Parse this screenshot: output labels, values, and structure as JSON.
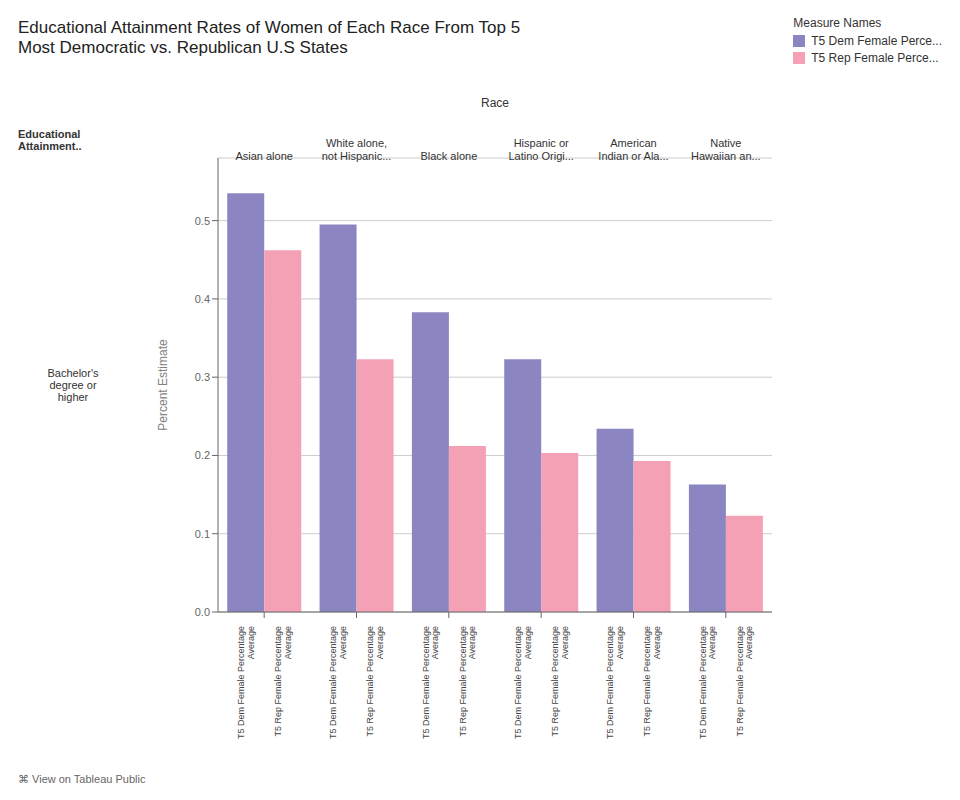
{
  "chart_data": {
    "type": "bar",
    "title": "Educational Attainment Rates of Women of Each Race From Top 5\nMost Democratic vs. Republican U.S States",
    "x_label": "Race",
    "y_label": "Percent Estimate",
    "annotations": [
      "Bachelor's\ndegree or\nhigher",
      "Educational\nAttainment..",
      "⌘ View on Tableau Public"
    ],
    "legend_title": "Measure Names",
    "categories": [
      "Asian alone",
      "White alone,\nnot Hispanic...",
      "Black alone",
      "Hispanic or\nLatino Origi...",
      "American\nIndian or Ala...",
      "Native\nHawaiian an..."
    ],
    "series": [
      {
        "name": "T5 Dem Female Perce...",
        "color": "#8B85C1",
        "tick_label": "T5 Dem Female Percentage\nAverage",
        "values": [
          0.535,
          0.495,
          0.383,
          0.323,
          0.234,
          0.163
        ]
      },
      {
        "name": "T5 Rep Female Perce...",
        "color": "#F4A0B5",
        "tick_label": "T5 Rep Female Percentage\nAverage",
        "values": [
          0.462,
          0.323,
          0.212,
          0.203,
          0.193,
          0.123
        ]
      }
    ],
    "ylim": [
      0.0,
      0.58
    ],
    "yticks": [
      {
        "value": 0.0,
        "label": "0.0"
      },
      0.1,
      0.2,
      0.3,
      0.4,
      0.5
    ],
    "grid": true,
    "legend": "upper right"
  }
}
